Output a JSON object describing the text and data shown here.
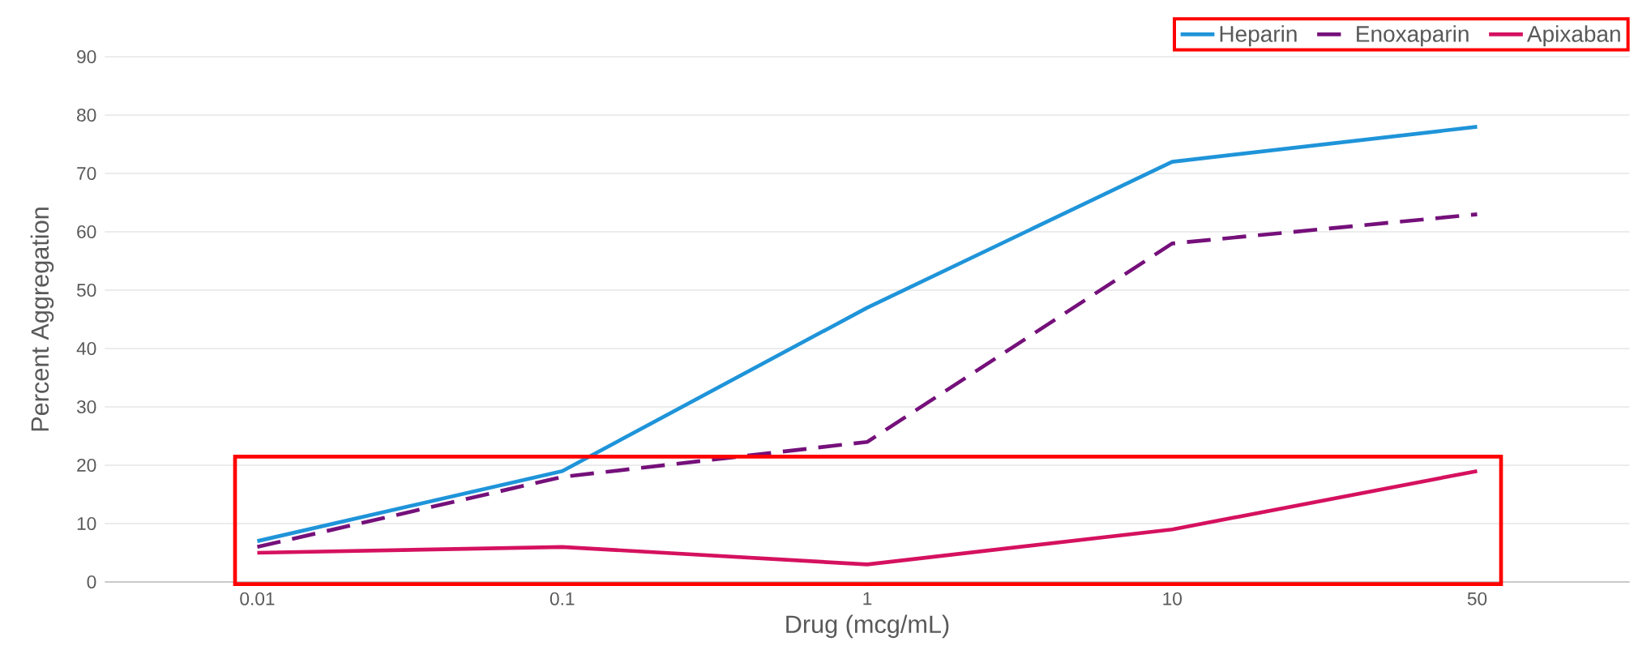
{
  "chart_data": {
    "type": "line",
    "xlabel": "Drug (mcg/mL)",
    "ylabel": "Percent Aggregation",
    "categories": [
      "0.01",
      "0.1",
      "1",
      "10",
      "50"
    ],
    "series": [
      {
        "name": "Heparin",
        "color": "#1f94d9",
        "values": [
          7,
          19,
          47,
          72,
          78
        ]
      },
      {
        "name": "Enoxaparin",
        "color": "#75107a",
        "values": [
          6,
          18,
          24,
          58,
          63
        ],
        "line_style": "dashed"
      },
      {
        "name": "Apixaban",
        "color": "#d5115f",
        "values": [
          5,
          6,
          3,
          9,
          19
        ]
      }
    ],
    "ylim": [
      0,
      90
    ],
    "yticks": [
      0,
      10,
      20,
      30,
      40,
      50,
      60,
      70,
      80,
      90
    ],
    "grid": "y",
    "legend": "top right",
    "marker": "none",
    "line_style": "solid"
  }
}
